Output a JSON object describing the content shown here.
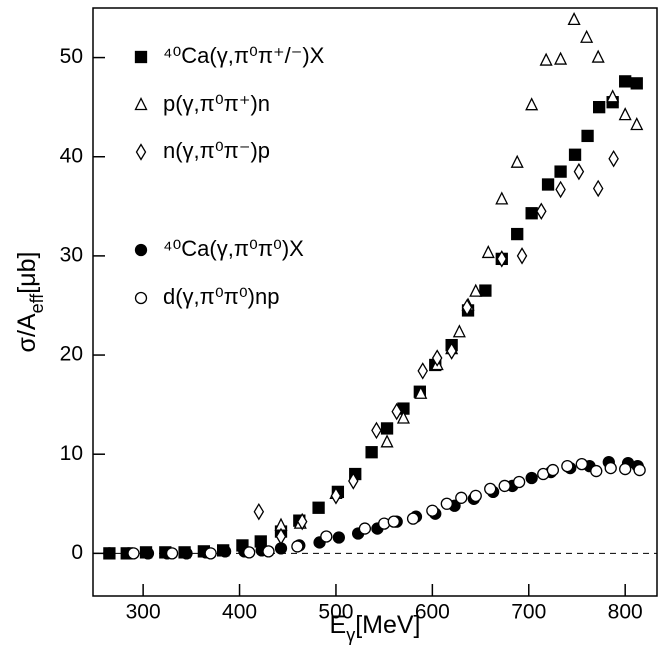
{
  "chart_data": {
    "type": "scatter",
    "x_label": [
      {
        "text": "E"
      },
      {
        "text": "γ",
        "sub": true
      },
      {
        "text": "[MeV]"
      }
    ],
    "y_label": [
      {
        "text": "σ/A"
      },
      {
        "text": "eff",
        "sub": true
      },
      {
        "text": "[μb]"
      }
    ],
    "xlim": [
      248,
      833
    ],
    "ylim": [
      -4.3,
      55
    ],
    "xticks": [
      300,
      400,
      500,
      600,
      700,
      800
    ],
    "yticks": [
      0,
      10,
      20,
      30,
      40,
      50
    ],
    "reference_line": 0,
    "series": [
      {
        "name": "⁴⁰Ca(γ,π⁰π⁺/⁻)X",
        "marker": "square",
        "filled": true,
        "color": "#000000",
        "x": [
          265,
          283,
          303,
          323,
          343,
          363,
          383,
          403,
          422,
          443,
          462,
          482,
          502,
          520,
          537,
          553,
          570,
          587,
          603,
          620,
          637,
          655,
          672,
          688,
          703,
          720,
          733,
          748,
          761,
          773,
          787,
          800,
          812
        ],
        "values": [
          0,
          0,
          0.1,
          0.1,
          0.1,
          0.2,
          0.3,
          0.8,
          1.2,
          2.2,
          3.3,
          4.6,
          6.2,
          8.0,
          10.2,
          12.6,
          14.6,
          16.3,
          19.0,
          21.0,
          24.5,
          26.5,
          29.7,
          32.2,
          34.3,
          37.2,
          38.5,
          40.2,
          42.1,
          45.0,
          45.5,
          47.6,
          47.4
        ]
      },
      {
        "name": "p(γ,π⁰π⁺)n",
        "marker": "triangle",
        "filled": false,
        "color": "#000000",
        "x": [
          443,
          463,
          500,
          553,
          570,
          588,
          605,
          620,
          628,
          637,
          645,
          658,
          672,
          688,
          703,
          718,
          733,
          747,
          760,
          772,
          787,
          800,
          812
        ],
        "values": [
          2.8,
          3.0,
          6.0,
          11.2,
          13.6,
          16.1,
          19.0,
          20.6,
          22.3,
          25.0,
          26.4,
          30.3,
          35.7,
          39.4,
          45.2,
          49.7,
          49.8,
          53.8,
          52.0,
          50.0,
          46.0,
          44.2,
          43.2
        ]
      },
      {
        "name": "n(γ,π⁰π⁻)p",
        "marker": "diamond",
        "filled": false,
        "color": "#000000",
        "x": [
          420,
          443,
          465,
          500,
          518,
          542,
          563,
          590,
          605,
          620,
          636,
          672,
          693,
          713,
          733,
          752,
          772,
          788
        ],
        "values": [
          4.2,
          1.7,
          3.2,
          5.8,
          7.3,
          12.4,
          14.3,
          18.4,
          19.7,
          20.4,
          24.8,
          29.7,
          30.0,
          34.5,
          36.7,
          38.5,
          36.8,
          39.8
        ]
      },
      {
        "name": "⁴⁰Ca(γ,π⁰π⁰)X",
        "marker": "circle",
        "filled": true,
        "color": "#000000",
        "x": [
          265,
          285,
          305,
          325,
          345,
          365,
          385,
          405,
          423,
          443,
          462,
          483,
          503,
          523,
          543,
          563,
          583,
          603,
          623,
          643,
          663,
          683,
          703,
          723,
          743,
          763,
          783,
          803,
          813
        ],
        "values": [
          0.0,
          0.0,
          0.0,
          0.0,
          0.0,
          0.1,
          0.2,
          0.2,
          0.3,
          0.5,
          0.8,
          1.1,
          1.6,
          2.0,
          2.5,
          3.2,
          3.7,
          4.0,
          4.8,
          5.5,
          6.2,
          6.8,
          7.6,
          8.2,
          8.6,
          8.8,
          9.2,
          9.1,
          8.8
        ]
      },
      {
        "name": "d(γ,π⁰π⁰)np",
        "marker": "circle",
        "filled": false,
        "color": "#000000",
        "x": [
          290,
          330,
          370,
          410,
          430,
          460,
          490,
          530,
          550,
          560,
          580,
          600,
          615,
          630,
          645,
          660,
          675,
          690,
          715,
          725,
          740,
          755,
          770,
          785,
          800,
          815
        ],
        "values": [
          0.0,
          0.0,
          0.0,
          0.1,
          0.2,
          0.7,
          1.7,
          2.5,
          3.0,
          3.2,
          3.5,
          4.3,
          5.0,
          5.6,
          5.8,
          6.5,
          6.8,
          7.2,
          8.0,
          8.4,
          8.8,
          9.0,
          8.3,
          8.6,
          8.5,
          8.4
        ]
      }
    ]
  }
}
